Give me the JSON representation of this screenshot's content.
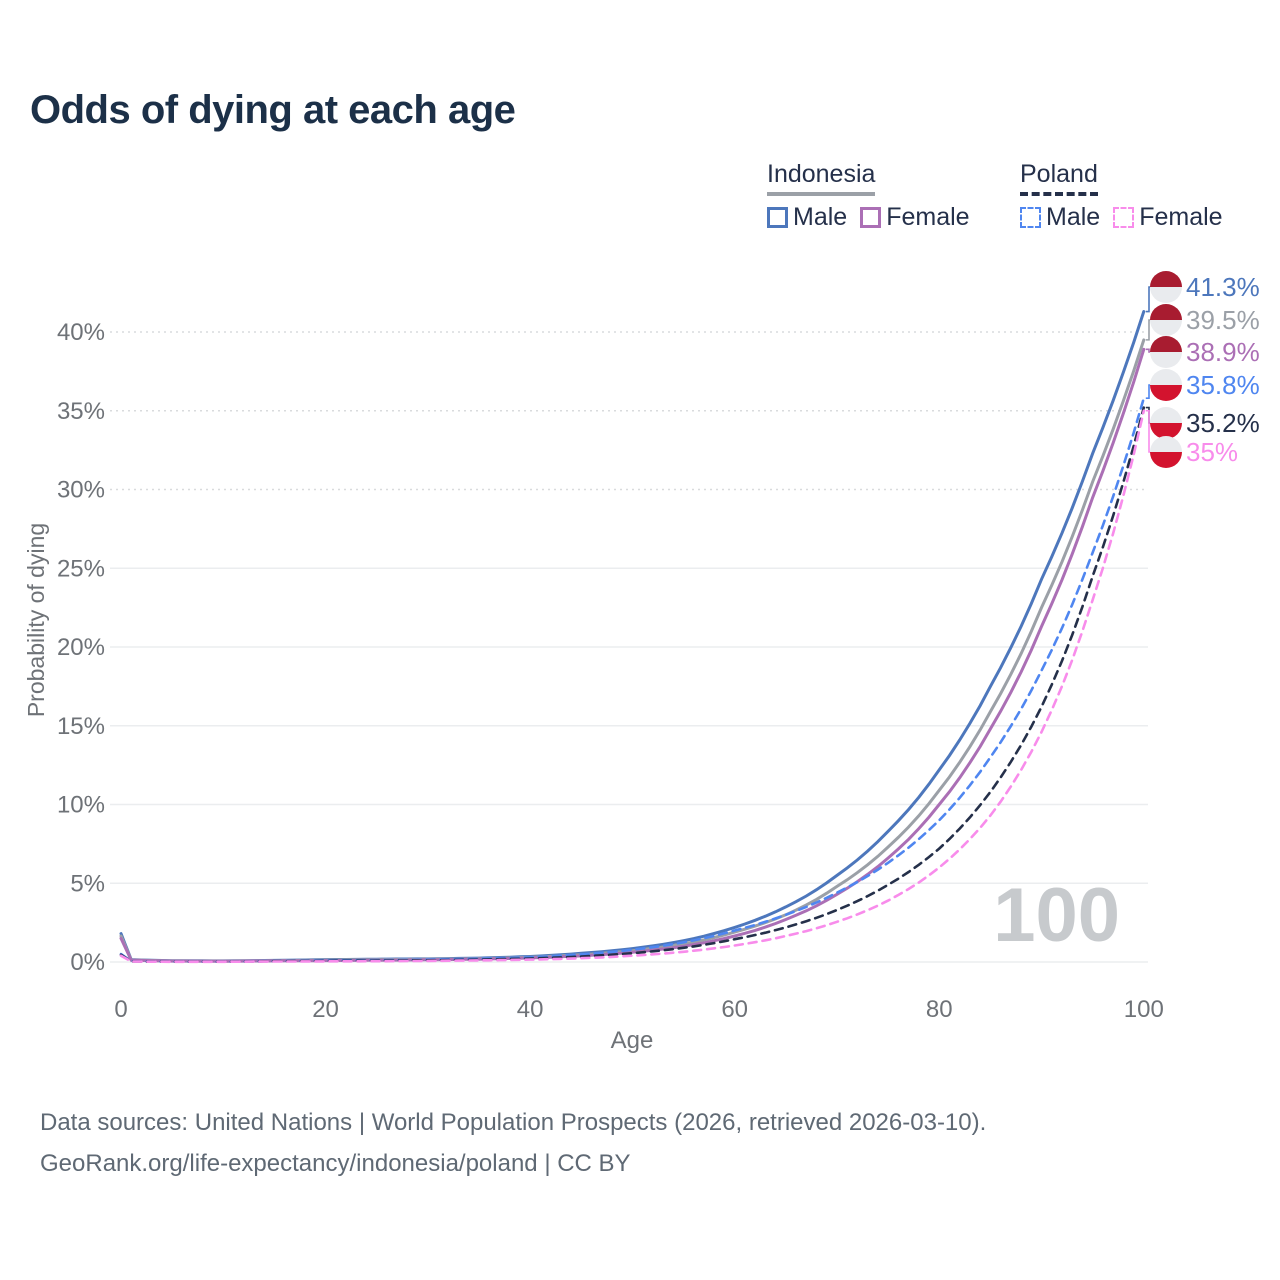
{
  "title": "Odds of dying at each age",
  "watermark": "100",
  "legend": {
    "groups": [
      {
        "id": "indonesia",
        "label": "Indonesia",
        "line_style": "solid",
        "line_color": "#9ba0a7",
        "items": [
          {
            "id": "indonesia-male",
            "label": "Male",
            "color": "#4d77bc"
          },
          {
            "id": "indonesia-female",
            "label": "Female",
            "color": "#ab6fb5"
          }
        ]
      },
      {
        "id": "poland",
        "label": "Poland",
        "line_style": "dashed",
        "line_color": "#25304a",
        "items": [
          {
            "id": "poland-male",
            "label": "Male",
            "color": "#4f86f0"
          },
          {
            "id": "poland-female",
            "label": "Female",
            "color": "#f88ceb"
          }
        ]
      }
    ]
  },
  "footer": {
    "line1": "Data sources: United Nations | World Population Prospects (2026, retrieved 2026-03-10).",
    "line2": "GeoRank.org/life-expectancy/indonesia/poland | CC BY"
  },
  "colors": {
    "title_text": "#1c3048",
    "legend_text": "#25304a",
    "axis_text": "#6e7277",
    "grid_solid": "#ebedef",
    "grid_dotted": "#d9dbdd",
    "watermark": "#c7cacd",
    "footer_text": "#5f6974",
    "flag_indonesia_red": "#a81c30",
    "flag_poland_red": "#d3132e",
    "flag_white": "#e9ebee"
  },
  "chart_data": {
    "type": "line",
    "title": "Odds of dying at each age",
    "xlabel": "Age",
    "ylabel": "Probability of dying",
    "xlim": [
      0,
      100
    ],
    "ylim_percent": [
      0,
      43
    ],
    "grid": "horizontal",
    "legend_position": "top-right",
    "x_ticks": [
      0,
      20,
      40,
      60,
      80,
      100
    ],
    "y_tick_values": [
      0,
      5,
      10,
      15,
      20,
      25,
      30,
      35,
      40
    ],
    "y_ticks": [
      "0%",
      "5%",
      "10%",
      "15%",
      "20%",
      "25%",
      "30%",
      "35%",
      "40%"
    ],
    "ages": [
      0,
      1,
      5,
      10,
      15,
      20,
      25,
      30,
      35,
      40,
      45,
      50,
      55,
      60,
      65,
      70,
      75,
      80,
      85,
      90,
      95,
      100
    ],
    "unit": "percent probability of dying at each age",
    "series": [
      {
        "id": "indonesia-male",
        "name": "Indonesia Male",
        "country": "Indonesia",
        "sex": "Male",
        "color": "#4d77bc",
        "dash": "solid",
        "flag": "indonesia",
        "end_label": "41.3%",
        "end_value": 41.3,
        "values": [
          1.8,
          0.15,
          0.08,
          0.07,
          0.1,
          0.15,
          0.18,
          0.2,
          0.25,
          0.35,
          0.55,
          0.85,
          1.35,
          2.2,
          3.5,
          5.5,
          8.3,
          12.2,
          17.5,
          24.3,
          32.3,
          41.3
        ]
      },
      {
        "id": "indonesia-both",
        "name": "Indonesia (both sexes)",
        "country": "Indonesia",
        "sex": "Both",
        "color": "#9ba0a7",
        "dash": "solid",
        "flag": "indonesia",
        "end_label": "39.5%",
        "end_value": 39.5,
        "values": [
          1.65,
          0.13,
          0.07,
          0.06,
          0.08,
          0.12,
          0.15,
          0.17,
          0.21,
          0.3,
          0.46,
          0.72,
          1.15,
          1.9,
          3.0,
          4.8,
          7.3,
          10.9,
          15.9,
          22.5,
          30.5,
          39.5
        ]
      },
      {
        "id": "indonesia-female",
        "name": "Indonesia Female",
        "country": "Indonesia",
        "sex": "Female",
        "color": "#ab6fb5",
        "dash": "solid",
        "flag": "indonesia",
        "end_label": "38.9%",
        "end_value": 38.9,
        "values": [
          1.5,
          0.12,
          0.06,
          0.05,
          0.07,
          0.09,
          0.11,
          0.14,
          0.18,
          0.26,
          0.39,
          0.62,
          1.0,
          1.65,
          2.7,
          4.3,
          6.6,
          10.0,
          14.8,
          21.3,
          29.5,
          38.9
        ]
      },
      {
        "id": "poland-male",
        "name": "Poland Male",
        "country": "Poland",
        "sex": "Male",
        "color": "#4f86f0",
        "dash": "dashed",
        "flag": "poland",
        "end_label": "35.8%",
        "end_value": 35.8,
        "values": [
          0.5,
          0.05,
          0.02,
          0.02,
          0.06,
          0.1,
          0.12,
          0.15,
          0.21,
          0.3,
          0.48,
          0.78,
          1.25,
          2.0,
          3.0,
          4.4,
          6.3,
          9.0,
          13.0,
          18.5,
          26.0,
          35.8
        ]
      },
      {
        "id": "poland-both",
        "name": "Poland (both sexes)",
        "country": "Poland",
        "sex": "Both",
        "color": "#25304a",
        "dash": "dashed",
        "flag": "poland",
        "end_label": "35.2%",
        "end_value": 35.2,
        "values": [
          0.45,
          0.04,
          0.02,
          0.02,
          0.05,
          0.07,
          0.09,
          0.11,
          0.15,
          0.22,
          0.35,
          0.56,
          0.9,
          1.45,
          2.2,
          3.3,
          4.9,
          7.2,
          10.8,
          16.2,
          24.5,
          35.2
        ]
      },
      {
        "id": "poland-female",
        "name": "Poland Female",
        "country": "Poland",
        "sex": "Female",
        "color": "#f88ceb",
        "dash": "dashed",
        "flag": "poland",
        "end_label": "35%",
        "end_value": 35.0,
        "values": [
          0.4,
          0.03,
          0.015,
          0.015,
          0.03,
          0.04,
          0.05,
          0.07,
          0.1,
          0.15,
          0.24,
          0.4,
          0.65,
          1.05,
          1.65,
          2.55,
          3.9,
          6.0,
          9.3,
          14.6,
          23.0,
          35.0
        ]
      }
    ]
  }
}
